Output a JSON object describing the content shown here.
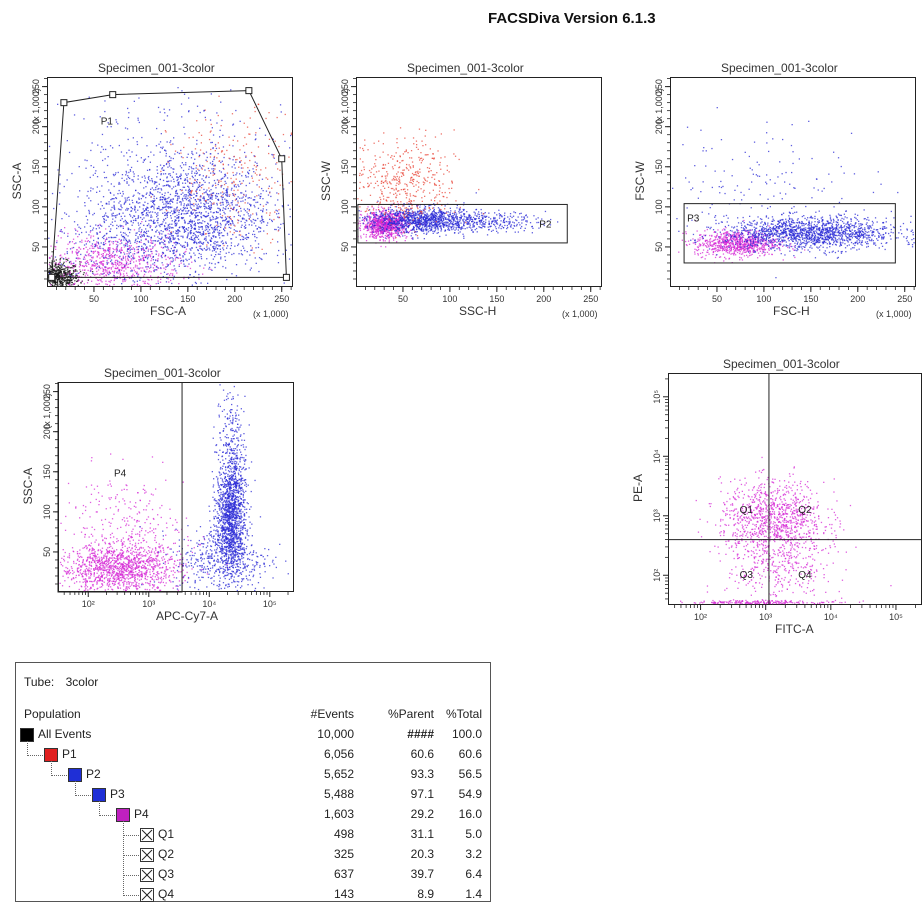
{
  "app_title": "FACSDiva Version 6.1.3",
  "colors": {
    "black": "#111111",
    "red": "#e8473a",
    "blue": "#2a2ad6",
    "magenta": "#d62ad6",
    "gate": "#222222"
  },
  "chart_data": [
    {
      "id": "plot1",
      "type": "scatter",
      "title": "Specimen_001-3color",
      "xlabel": "FSC-A",
      "ylabel": "SSC-A",
      "x_scale_note": "(x 1,000)",
      "y_scale_note": "(x 1,000)",
      "xlim": [
        0,
        262
      ],
      "ylim": [
        0,
        262
      ],
      "xticks": [
        50,
        100,
        150,
        200,
        250
      ],
      "yticks": [
        50,
        100,
        150,
        200,
        250
      ],
      "gates": [
        {
          "name": "P1",
          "type": "polygon",
          "points": [
            [
              18,
              230
            ],
            [
              5,
              12
            ],
            [
              255,
              12
            ],
            [
              250,
              160
            ],
            [
              215,
              245
            ],
            [
              70,
              240
            ]
          ]
        }
      ],
      "clusters": [
        {
          "color": "black",
          "cx": 10,
          "cy": 12,
          "sx": 12,
          "sy": 10,
          "n": 700
        },
        {
          "color": "magenta",
          "cx": 70,
          "cy": 30,
          "sx": 35,
          "sy": 18,
          "n": 750
        },
        {
          "color": "blue",
          "cx": 150,
          "cy": 95,
          "sx": 45,
          "sy": 35,
          "n": 1400
        },
        {
          "color": "blue",
          "cx": 110,
          "cy": 60,
          "sx": 60,
          "sy": 30,
          "n": 600
        },
        {
          "color": "red",
          "cx": 200,
          "cy": 140,
          "sx": 35,
          "sy": 40,
          "n": 250
        },
        {
          "color": "blue",
          "cx": 140,
          "cy": 150,
          "sx": 70,
          "sy": 50,
          "n": 350
        }
      ]
    },
    {
      "id": "plot2",
      "type": "scatter",
      "title": "Specimen_001-3color",
      "xlabel": "SSC-H",
      "ylabel": "SSC-W",
      "x_scale_note": "(x 1,000)",
      "y_scale_note": "(x 1,000)",
      "xlim": [
        0,
        262
      ],
      "ylim": [
        0,
        262
      ],
      "xticks": [
        50,
        100,
        150,
        200,
        250
      ],
      "yticks": [
        50,
        100,
        150,
        200,
        250
      ],
      "gates": [
        {
          "name": "P2",
          "type": "rect",
          "x0": 2,
          "x1": 225,
          "y0": 55,
          "y1": 103
        }
      ],
      "clusters": [
        {
          "color": "magenta",
          "cx": 30,
          "cy": 78,
          "sx": 12,
          "sy": 8,
          "n": 900
        },
        {
          "color": "blue",
          "cx": 70,
          "cy": 84,
          "sx": 30,
          "sy": 8,
          "n": 1100
        },
        {
          "color": "blue",
          "cx": 140,
          "cy": 82,
          "sx": 30,
          "sy": 6,
          "n": 250
        },
        {
          "color": "red",
          "cx": 50,
          "cy": 130,
          "sx": 28,
          "sy": 28,
          "n": 450
        }
      ]
    },
    {
      "id": "plot3",
      "type": "scatter",
      "title": "Specimen_001-3color",
      "xlabel": "FSC-H",
      "ylabel": "FSC-W",
      "x_scale_note": "(x 1,000)",
      "y_scale_note": "(x 1,000)",
      "xlim": [
        0,
        262
      ],
      "ylim": [
        0,
        262
      ],
      "xticks": [
        50,
        100,
        150,
        200,
        250
      ],
      "yticks": [
        50,
        100,
        150,
        200,
        250
      ],
      "gates": [
        {
          "name": "P3",
          "type": "rect",
          "x0": 15,
          "x1": 240,
          "y0": 30,
          "y1": 104
        }
      ],
      "clusters": [
        {
          "color": "magenta",
          "cx": 70,
          "cy": 55,
          "sx": 22,
          "sy": 8,
          "n": 800
        },
        {
          "color": "blue",
          "cx": 150,
          "cy": 68,
          "sx": 45,
          "sy": 10,
          "n": 1500
        },
        {
          "color": "blue",
          "cx": 100,
          "cy": 130,
          "sx": 60,
          "sy": 40,
          "n": 150
        }
      ]
    },
    {
      "id": "plot4",
      "type": "scatter",
      "title": "Specimen_001-3color",
      "xlabel": "APC-Cy7-A",
      "ylabel": "SSC-A",
      "y_scale_note": "(x 1,000)",
      "xscale": "log",
      "xlim_log": [
        1.5,
        5.4
      ],
      "ylim": [
        0,
        262
      ],
      "xticks_log": [
        2,
        3,
        4,
        5
      ],
      "xtick_labels": [
        "10²",
        "10³",
        "10⁴",
        "10⁵"
      ],
      "yticks": [
        50,
        100,
        150,
        200,
        250
      ],
      "gates": [
        {
          "name": "P4",
          "type": "rect",
          "x0": 1.5,
          "x1": 3.55,
          "y0": 0,
          "y1": 262
        }
      ],
      "clusters": [
        {
          "color": "magenta",
          "cx": 2.5,
          "cy": 30,
          "sx": 0.5,
          "sy": 15,
          "n": 1200
        },
        {
          "color": "magenta",
          "cx": 2.6,
          "cy": 70,
          "sx": 0.5,
          "sy": 40,
          "n": 350
        },
        {
          "color": "blue",
          "cx": 4.35,
          "cy": 95,
          "sx": 0.12,
          "sy": 35,
          "n": 1300
        },
        {
          "color": "blue",
          "cx": 4.2,
          "cy": 40,
          "sx": 0.4,
          "sy": 20,
          "n": 450
        },
        {
          "color": "blue",
          "cx": 4.35,
          "cy": 180,
          "sx": 0.12,
          "sy": 40,
          "n": 250
        }
      ]
    },
    {
      "id": "plot5",
      "type": "scatter",
      "title": "Specimen_001-3color",
      "xlabel": "FITC-A",
      "ylabel": "PE-A",
      "xscale": "log",
      "yscale": "log",
      "xlim_log": [
        1.5,
        5.4
      ],
      "ylim_log": [
        1.5,
        5.4
      ],
      "xticks_log": [
        2,
        3,
        4,
        5
      ],
      "yticks_log": [
        2,
        3,
        4,
        5
      ],
      "xtick_labels": [
        "10²",
        "10³",
        "10⁴",
        "10⁵"
      ],
      "ytick_labels": [
        "10²",
        "10³",
        "10⁴",
        "10⁵"
      ],
      "quadrant": {
        "x": 3.05,
        "y": 2.6
      },
      "quadrant_labels": [
        {
          "name": "Q1",
          "x": 2.6,
          "y": 3.05
        },
        {
          "name": "Q2",
          "x": 3.5,
          "y": 3.05
        },
        {
          "name": "Q3",
          "x": 2.6,
          "y": 1.95
        },
        {
          "name": "Q4",
          "x": 3.5,
          "y": 1.95
        }
      ],
      "clusters": [
        {
          "color": "magenta",
          "cx": 3.1,
          "cy": 3.0,
          "sx": 0.4,
          "sy": 0.3,
          "n": 900
        },
        {
          "color": "magenta",
          "cx": 3.2,
          "cy": 2.2,
          "sx": 0.4,
          "sy": 0.4,
          "n": 450
        },
        {
          "color": "magenta",
          "cx": 3.0,
          "cy": 1.55,
          "sx": 0.6,
          "sy": 0.02,
          "n": 250
        }
      ]
    }
  ],
  "hierarchy": {
    "tube_label": "Tube:",
    "tube_value": "3color",
    "headers": {
      "population": "Population",
      "events": "#Events",
      "parent": "%Parent",
      "total": "%Total"
    },
    "rows": [
      {
        "name": "All Events",
        "swatch": "#000000",
        "type": "swatch",
        "events": "10,000",
        "parent": "####",
        "total": "100.0"
      },
      {
        "name": "P1",
        "swatch": "#e02020",
        "type": "swatch",
        "events": "6,056",
        "parent": "60.6",
        "total": "60.6"
      },
      {
        "name": "P2",
        "swatch": "#1f2fd6",
        "type": "swatch",
        "events": "5,652",
        "parent": "93.3",
        "total": "56.5"
      },
      {
        "name": "P3",
        "swatch": "#1f2fd6",
        "type": "swatch",
        "events": "5,488",
        "parent": "97.1",
        "total": "54.9"
      },
      {
        "name": "P4",
        "swatch": "#c020c0",
        "type": "swatch",
        "events": "1,603",
        "parent": "29.2",
        "total": "16.0"
      },
      {
        "name": "Q1",
        "type": "quad",
        "events": "498",
        "parent": "31.1",
        "total": "5.0"
      },
      {
        "name": "Q2",
        "type": "quad",
        "events": "325",
        "parent": "20.3",
        "total": "3.2"
      },
      {
        "name": "Q3",
        "type": "quad",
        "events": "637",
        "parent": "39.7",
        "total": "6.4"
      },
      {
        "name": "Q4",
        "type": "quad",
        "events": "143",
        "parent": "8.9",
        "total": "1.4"
      }
    ]
  }
}
